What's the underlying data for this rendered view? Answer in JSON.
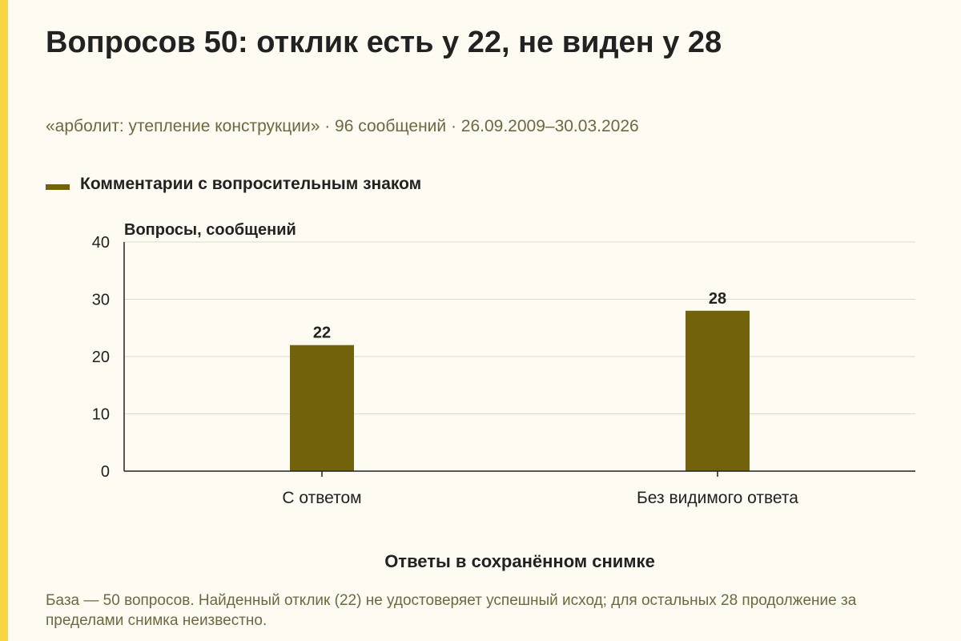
{
  "title": "Вопросов 50: отклик есть у 22, не виден у 28",
  "subtitle": "«арболит: утепление конструкции» · 96 сообщений · 26.09.2009–30.03.2026",
  "footnote": "База — 50 вопросов. Найденный отклик (22) не удостоверяет успешный исход; для остальных 28 продолжение за пределами снимка неизвестно.",
  "colors": {
    "background": "#fdfbf2",
    "accent_stripe": "#f6d743",
    "bar": "#72620c",
    "grid": "#dddbd0",
    "text_dark": "#222222",
    "text_muted": "#6e6840"
  },
  "chart_data": {
    "type": "bar",
    "categories": [
      "С ответом",
      "Без видимого ответа"
    ],
    "series": [
      {
        "name": "Комментарии с вопросительным знаком",
        "values": [
          22,
          28
        ]
      }
    ],
    "ylabel": "Вопросы, сообщений",
    "xlabel": "Ответы в сохранённом снимке",
    "ylim": [
      0,
      40
    ],
    "yticks": [
      0,
      10,
      20,
      30,
      40
    ],
    "grid": true,
    "legend_position": "top-left",
    "data_labels": true
  }
}
